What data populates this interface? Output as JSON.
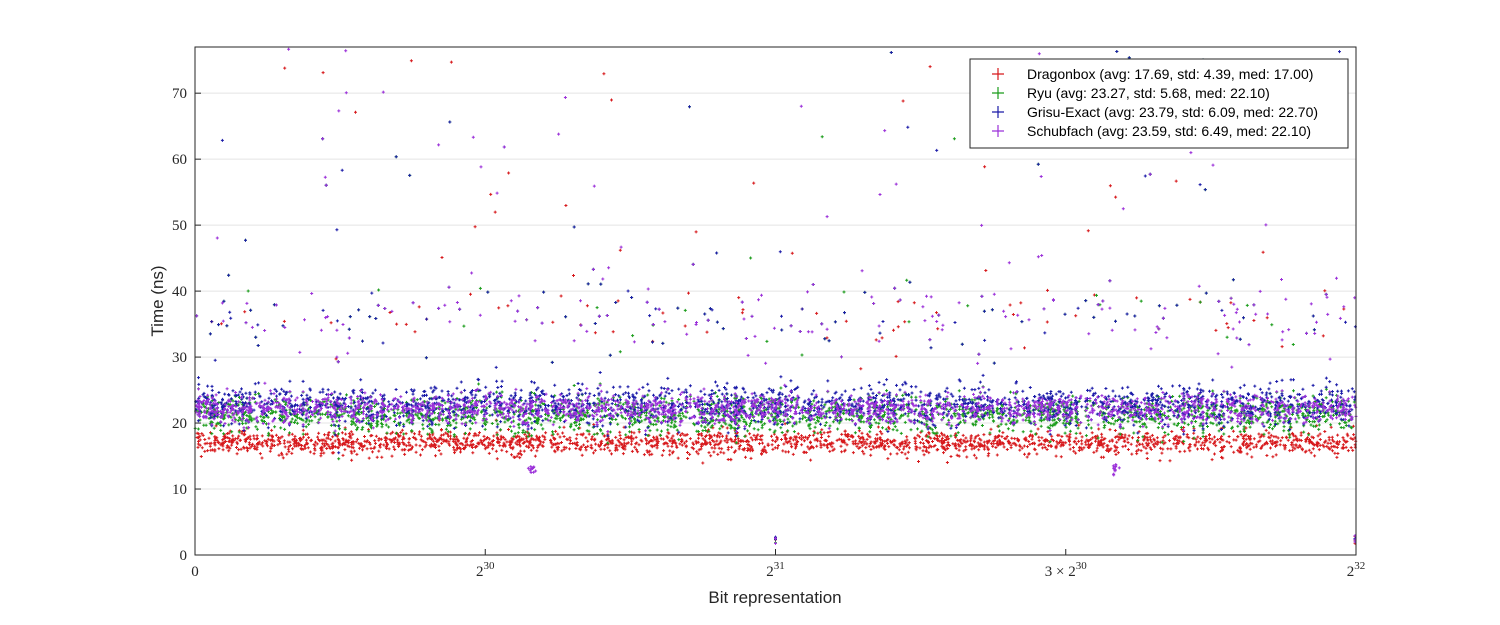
{
  "chart_data": {
    "type": "scatter",
    "title": "",
    "xlabel": "Bit representation",
    "ylabel": "Time (ns)",
    "xlim": [
      0,
      4294967296
    ],
    "ylim": [
      0,
      77
    ],
    "x_ticks": [
      {
        "value": 0,
        "label": "0"
      },
      {
        "value": 1073741824,
        "label": "2^30",
        "base": "2",
        "exp": "30"
      },
      {
        "value": 2147483648,
        "label": "2^31",
        "base": "2",
        "exp": "31"
      },
      {
        "value": 3221225472,
        "label": "3 × 2^30",
        "base": "3 × 2",
        "exp": "30"
      },
      {
        "value": 4294967296,
        "label": "2^32",
        "base": "2",
        "exp": "32"
      }
    ],
    "y_ticks": [
      0,
      10,
      20,
      30,
      40,
      50,
      60,
      70
    ],
    "grid": "horizontal",
    "legend_position": "top-right",
    "marker": "+",
    "series": [
      {
        "name": "Dragonbox",
        "legend": "Dragonbox (avg: 17.69, std: 4.39, med: 17.00)",
        "color": "#d7191c",
        "avg": 17.69,
        "std": 4.39,
        "median": 17.0
      },
      {
        "name": "Ryu",
        "legend": "Ryu (avg: 23.27, std: 5.68, med: 22.10)",
        "color": "#1a9c1a",
        "avg": 23.27,
        "std": 5.68,
        "median": 22.1
      },
      {
        "name": "Grisu-Exact",
        "legend": "Grisu-Exact (avg: 23.79, std: 6.09, med: 22.70)",
        "color": "#1a1aa8",
        "avg": 23.79,
        "std": 6.09,
        "median": 22.7
      },
      {
        "name": "Schubfach",
        "legend": "Schubfach (avg: 23.59, std: 6.49, med: 22.10)",
        "color": "#9b30d9",
        "avg": 23.59,
        "std": 6.49,
        "median": 22.1
      }
    ],
    "points_per_series_shown": "dense band"
  }
}
